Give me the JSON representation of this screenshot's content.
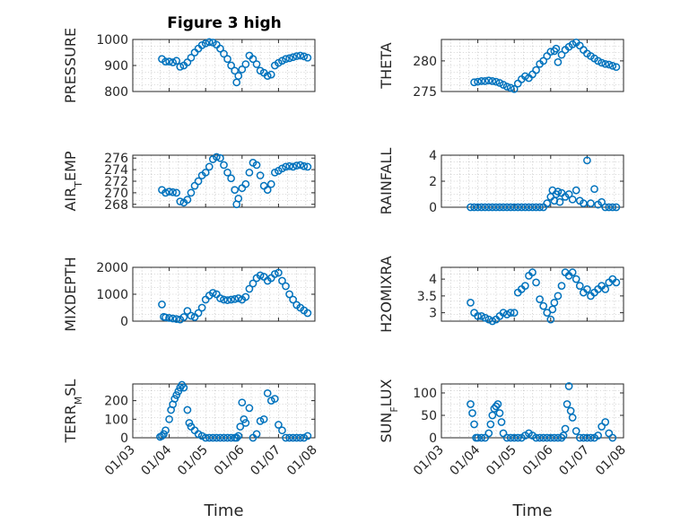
{
  "figure": {
    "title": "Figure 3 high",
    "marker_color": "#0072bd",
    "x_tick_labels": [
      "01/03",
      "01/04",
      "01/05",
      "01/06",
      "01/07",
      "01/08"
    ],
    "xlabel": "Time"
  },
  "chart_data": [
    {
      "type": "scatter",
      "ylabel": "PRESSURE",
      "title": "Figure 3 high",
      "xlim": [
        3,
        8
      ],
      "ylim": [
        800,
        1000
      ],
      "yticks": [
        800,
        900,
        1000
      ],
      "grid": true,
      "x": [
        3.8,
        3.9,
        4.0,
        4.1,
        4.2,
        4.3,
        4.4,
        4.5,
        4.6,
        4.7,
        4.8,
        4.9,
        5.0,
        5.1,
        5.2,
        5.3,
        5.4,
        5.5,
        5.6,
        5.7,
        5.8,
        5.85,
        5.9,
        6.0,
        6.1,
        6.2,
        6.3,
        6.4,
        6.5,
        6.6,
        6.7,
        6.8,
        6.9,
        7.0,
        7.1,
        7.2,
        7.3,
        7.4,
        7.5,
        7.6,
        7.7,
        7.8
      ],
      "y": [
        925,
        915,
        915,
        912,
        918,
        895,
        900,
        912,
        930,
        950,
        965,
        978,
        985,
        990,
        988,
        980,
        965,
        945,
        925,
        900,
        880,
        835,
        860,
        885,
        905,
        938,
        925,
        905,
        880,
        872,
        860,
        865,
        900,
        910,
        918,
        925,
        928,
        932,
        936,
        938,
        935,
        930
      ]
    },
    {
      "type": "scatter",
      "ylabel": "THETA",
      "xlim": [
        3,
        8
      ],
      "ylim": [
        275,
        283.5
      ],
      "yticks": [
        275,
        280
      ],
      "grid": true,
      "x": [
        3.9,
        4.0,
        4.1,
        4.2,
        4.3,
        4.4,
        4.5,
        4.6,
        4.7,
        4.8,
        4.9,
        5.0,
        5.1,
        5.2,
        5.3,
        5.4,
        5.5,
        5.6,
        5.7,
        5.8,
        5.9,
        6.0,
        6.1,
        6.15,
        6.2,
        6.3,
        6.4,
        6.5,
        6.6,
        6.7,
        6.8,
        6.9,
        7.0,
        7.1,
        7.2,
        7.3,
        7.4,
        7.5,
        7.6,
        7.7,
        7.8
      ],
      "y": [
        276.5,
        276.6,
        276.7,
        276.7,
        276.8,
        276.7,
        276.6,
        276.4,
        276.1,
        275.8,
        275.6,
        275.4,
        276.3,
        277.0,
        277.5,
        277.2,
        277.8,
        278.5,
        279.5,
        280.0,
        280.8,
        281.5,
        281.6,
        282.0,
        279.8,
        281.0,
        281.8,
        282.3,
        282.7,
        283.0,
        282.5,
        281.8,
        281.2,
        280.8,
        280.4,
        280.0,
        279.7,
        279.5,
        279.4,
        279.2,
        279.0
      ]
    },
    {
      "type": "scatter",
      "ylabel": "AIR",
      "ylabel_sub": "T",
      "ylabel_tail": "EMP",
      "xlim": [
        3,
        8
      ],
      "ylim": [
        267.5,
        276.5
      ],
      "yticks": [
        268,
        270,
        272,
        274,
        276
      ],
      "grid": true,
      "x": [
        3.8,
        3.9,
        4.0,
        4.1,
        4.2,
        4.3,
        4.4,
        4.5,
        4.6,
        4.7,
        4.8,
        4.9,
        5.0,
        5.1,
        5.2,
        5.3,
        5.4,
        5.5,
        5.6,
        5.7,
        5.8,
        5.85,
        5.9,
        6.0,
        6.1,
        6.2,
        6.3,
        6.4,
        6.5,
        6.6,
        6.7,
        6.8,
        6.9,
        7.0,
        7.1,
        7.2,
        7.3,
        7.4,
        7.5,
        7.6,
        7.7,
        7.8
      ],
      "y": [
        270.5,
        270.0,
        270.2,
        270.1,
        270.0,
        268.5,
        268.3,
        268.8,
        270.0,
        271.2,
        272.0,
        273.0,
        273.5,
        274.5,
        275.8,
        276.2,
        276.0,
        274.8,
        273.5,
        272.5,
        270.5,
        268.0,
        269.0,
        270.8,
        271.5,
        273.5,
        275.2,
        274.8,
        273.0,
        271.2,
        270.5,
        271.5,
        273.5,
        273.8,
        274.2,
        274.5,
        274.6,
        274.5,
        274.7,
        274.8,
        274.6,
        274.5
      ]
    },
    {
      "type": "scatter",
      "ylabel": "RAINFALL",
      "xlim": [
        3,
        8
      ],
      "ylim": [
        0,
        4
      ],
      "yticks": [
        0,
        2,
        4
      ],
      "grid": true,
      "x": [
        3.8,
        3.9,
        4.0,
        4.1,
        4.2,
        4.3,
        4.4,
        4.5,
        4.6,
        4.7,
        4.8,
        4.9,
        5.0,
        5.1,
        5.2,
        5.3,
        5.4,
        5.5,
        5.6,
        5.7,
        5.8,
        5.9,
        6.0,
        6.05,
        6.1,
        6.15,
        6.2,
        6.25,
        6.3,
        6.4,
        6.5,
        6.6,
        6.7,
        6.8,
        6.9,
        7.0,
        7.1,
        7.2,
        7.3,
        7.4,
        7.5,
        7.6,
        7.7,
        7.8
      ],
      "y": [
        0,
        0,
        0,
        0,
        0,
        0,
        0,
        0,
        0,
        0,
        0,
        0,
        0,
        0,
        0,
        0,
        0,
        0,
        0,
        0,
        0,
        0.3,
        0.8,
        1.3,
        0.5,
        1.0,
        1.2,
        0.4,
        1.1,
        0.8,
        1.0,
        0.6,
        1.3,
        0.5,
        0.3,
        3.6,
        0.3,
        1.4,
        0.2,
        0.4,
        0,
        0,
        0,
        0
      ]
    },
    {
      "type": "scatter",
      "ylabel": "MIXDEPTH",
      "xlim": [
        3,
        8
      ],
      "ylim": [
        0,
        2000
      ],
      "yticks": [
        0,
        1000,
        2000
      ],
      "grid": true,
      "x": [
        3.8,
        3.85,
        3.9,
        4.0,
        4.1,
        4.2,
        4.3,
        4.4,
        4.5,
        4.6,
        4.7,
        4.8,
        4.9,
        5.0,
        5.1,
        5.2,
        5.3,
        5.4,
        5.5,
        5.6,
        5.7,
        5.8,
        5.9,
        6.0,
        6.1,
        6.2,
        6.3,
        6.4,
        6.5,
        6.6,
        6.7,
        6.8,
        6.9,
        7.0,
        7.1,
        7.2,
        7.3,
        7.4,
        7.5,
        7.6,
        7.7,
        7.8
      ],
      "y": [
        620,
        160,
        140,
        120,
        100,
        80,
        60,
        150,
        380,
        200,
        150,
        300,
        500,
        800,
        950,
        1050,
        1000,
        850,
        800,
        780,
        800,
        820,
        850,
        800,
        900,
        1200,
        1400,
        1600,
        1700,
        1650,
        1500,
        1600,
        1750,
        1800,
        1500,
        1300,
        1000,
        800,
        600,
        500,
        400,
        300
      ]
    },
    {
      "type": "scatter",
      "ylabel": "H2OMIXRA",
      "xlim": [
        3,
        8
      ],
      "ylim": [
        2.75,
        4.35
      ],
      "yticks": [
        3,
        3.5,
        4
      ],
      "grid": true,
      "x": [
        3.8,
        3.9,
        4.0,
        4.1,
        4.2,
        4.3,
        4.4,
        4.5,
        4.6,
        4.7,
        4.8,
        4.9,
        5.0,
        5.1,
        5.2,
        5.3,
        5.4,
        5.5,
        5.6,
        5.7,
        5.8,
        5.9,
        6.0,
        6.05,
        6.1,
        6.2,
        6.3,
        6.4,
        6.5,
        6.6,
        6.7,
        6.8,
        6.9,
        7.0,
        7.1,
        7.2,
        7.3,
        7.4,
        7.5,
        7.6,
        7.7,
        7.8
      ],
      "y": [
        3.3,
        3.0,
        2.9,
        2.9,
        2.85,
        2.8,
        2.75,
        2.8,
        2.9,
        3.0,
        2.95,
        3.0,
        3.0,
        3.6,
        3.7,
        3.8,
        4.1,
        4.2,
        3.9,
        3.4,
        3.2,
        3.0,
        2.8,
        3.1,
        3.3,
        3.5,
        3.8,
        4.2,
        4.1,
        4.2,
        4.0,
        3.8,
        3.6,
        3.7,
        3.5,
        3.6,
        3.7,
        3.8,
        3.7,
        3.9,
        4.0,
        3.9
      ]
    },
    {
      "type": "scatter",
      "ylabel": "TERR",
      "ylabel_sub": "M",
      "ylabel_tail": "SL",
      "xlim": [
        3,
        8
      ],
      "ylim": [
        0,
        290
      ],
      "yticks": [
        0,
        100,
        200
      ],
      "grid": true,
      "x": [
        3.75,
        3.8,
        3.85,
        3.9,
        4.0,
        4.05,
        4.1,
        4.15,
        4.2,
        4.25,
        4.3,
        4.35,
        4.4,
        4.5,
        4.55,
        4.6,
        4.7,
        4.8,
        4.9,
        5.0,
        5.1,
        5.2,
        5.3,
        5.4,
        5.5,
        5.6,
        5.7,
        5.8,
        5.85,
        5.9,
        5.95,
        6.0,
        6.05,
        6.1,
        6.2,
        6.3,
        6.4,
        6.5,
        6.6,
        6.7,
        6.8,
        6.9,
        7.0,
        7.1,
        7.2,
        7.3,
        7.4,
        7.5,
        7.6,
        7.7,
        7.8
      ],
      "y": [
        5,
        10,
        20,
        40,
        100,
        150,
        180,
        210,
        230,
        250,
        270,
        285,
        270,
        150,
        80,
        60,
        40,
        20,
        10,
        0,
        0,
        0,
        0,
        0,
        0,
        0,
        0,
        0,
        0,
        10,
        60,
        190,
        100,
        80,
        160,
        0,
        20,
        90,
        100,
        240,
        200,
        210,
        70,
        40,
        0,
        0,
        0,
        0,
        0,
        0,
        10
      ]
    },
    {
      "type": "scatter",
      "ylabel": "SUN",
      "ylabel_sub": "F",
      "ylabel_tail": "LUX",
      "xlim": [
        3,
        8
      ],
      "ylim": [
        0,
        120
      ],
      "yticks": [
        0,
        50,
        100
      ],
      "grid": true,
      "x": [
        3.8,
        3.85,
        3.9,
        3.95,
        4.0,
        4.1,
        4.2,
        4.3,
        4.35,
        4.4,
        4.45,
        4.5,
        4.55,
        4.6,
        4.65,
        4.7,
        4.8,
        4.9,
        5.0,
        5.1,
        5.2,
        5.3,
        5.4,
        5.5,
        5.6,
        5.7,
        5.8,
        5.9,
        6.0,
        6.1,
        6.2,
        6.3,
        6.35,
        6.4,
        6.45,
        6.5,
        6.55,
        6.6,
        6.7,
        6.8,
        6.9,
        7.0,
        7.1,
        7.2,
        7.3,
        7.4,
        7.5,
        7.6,
        7.7
      ],
      "y": [
        75,
        55,
        30,
        0,
        0,
        0,
        0,
        10,
        30,
        50,
        65,
        70,
        75,
        55,
        35,
        10,
        0,
        0,
        0,
        0,
        0,
        5,
        10,
        5,
        0,
        0,
        0,
        0,
        0,
        0,
        0,
        0,
        5,
        20,
        75,
        115,
        60,
        45,
        15,
        0,
        0,
        0,
        0,
        0,
        5,
        25,
        35,
        10,
        0
      ]
    }
  ]
}
